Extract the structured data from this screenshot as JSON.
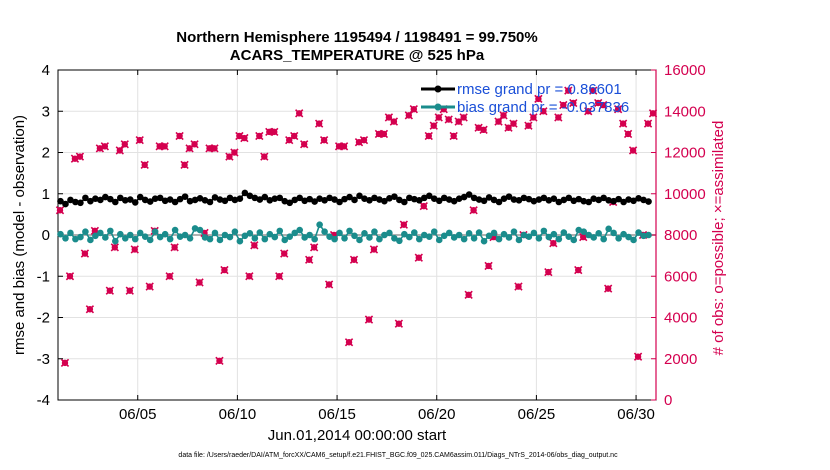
{
  "chart_data": {
    "type": "line",
    "title_line1": "Northern Hemisphere 1195494 / 1198491 = 99.750%",
    "title_line2": "ACARS_TEMPERATURE @ 525 hPa",
    "xlabel": "Jun.01,2014 00:00:00 start",
    "ylabel": "rmse and bias (model - observation)",
    "y2label": "# of obs: o=possible; ×=assimilated",
    "footnote": "data file: /Users/raeder/DAI/ATM_forcXX/CAM6_setup/f.e21.FHIST_BGC.f09_025.CAM6assim.011/Diags_NTrS_2014-06/obs_diag_output.nc",
    "xlim": [
      1,
      31
    ],
    "ylim": [
      -4,
      4
    ],
    "y2lim": [
      0,
      16000
    ],
    "x_ticks": [
      5,
      10,
      15,
      20,
      25,
      30
    ],
    "x_tick_labels": [
      "06/05",
      "06/10",
      "06/15",
      "06/20",
      "06/25",
      "06/30"
    ],
    "y_ticks": [
      -4,
      -3,
      -2,
      -1,
      0,
      1,
      2,
      3,
      4
    ],
    "y_tick_labels": [
      "-4",
      "-3",
      "-2",
      "-1",
      "0",
      "1",
      "2",
      "3",
      "4"
    ],
    "y2_ticks": [
      0,
      2000,
      4000,
      6000,
      8000,
      10000,
      12000,
      14000,
      16000
    ],
    "y2_tick_labels": [
      "0",
      "2000",
      "4000",
      "6000",
      "8000",
      "10000",
      "12000",
      "14000",
      "16000"
    ],
    "grid": true,
    "legend": {
      "position": "top-right",
      "entries": [
        "rmse grand pr = 0.86601",
        "bias grand pr = -0.037836"
      ]
    },
    "colors": {
      "rmse": "#000000",
      "bias": "#1a8c8c",
      "obs": "#d4004f",
      "legend_text": "#1a4fd8",
      "zero_line": "#b0b0b0"
    },
    "series": [
      {
        "name": "rmse",
        "step_days": 0.25,
        "start_day": 1.125,
        "values": [
          0.82,
          0.75,
          0.85,
          0.8,
          0.78,
          0.9,
          0.82,
          0.88,
          0.85,
          0.92,
          0.87,
          0.8,
          0.9,
          0.84,
          0.86,
          0.79,
          0.92,
          0.85,
          0.81,
          0.88,
          0.9,
          0.83,
          0.86,
          0.8,
          0.87,
          0.93,
          0.82,
          0.85,
          0.89,
          0.84,
          0.8,
          0.91,
          0.86,
          0.83,
          0.9,
          0.85,
          0.88,
          1.02,
          0.95,
          0.9,
          0.86,
          0.92,
          0.84,
          0.88,
          0.9,
          0.82,
          0.78,
          0.85,
          0.9,
          0.83,
          0.87,
          0.81,
          0.88,
          0.84,
          0.9,
          0.86,
          0.8,
          0.87,
          0.92,
          0.85,
          0.95,
          0.88,
          0.84,
          0.9,
          0.86,
          0.82,
          0.89,
          0.93,
          0.85,
          0.8,
          0.9,
          0.87,
          0.84,
          0.9,
          0.95,
          0.88,
          0.83,
          0.9,
          0.86,
          0.82,
          0.88,
          0.92,
          0.98,
          0.9,
          0.86,
          0.83,
          0.91,
          0.85,
          0.8,
          0.88,
          0.93,
          0.86,
          0.84,
          0.9,
          0.87,
          0.82,
          0.86,
          0.9,
          0.84,
          0.88,
          0.8,
          0.85,
          0.9,
          0.83,
          0.87,
          0.82,
          0.8,
          0.88,
          0.85,
          0.9,
          0.84,
          0.82,
          0.87,
          0.8,
          0.86,
          0.83,
          0.89,
          0.85,
          0.81
        ]
      },
      {
        "name": "bias",
        "step_days": 0.25,
        "start_day": 1.125,
        "values": [
          0.02,
          -0.08,
          0.05,
          -0.1,
          -0.05,
          0.08,
          -0.12,
          -0.02,
          0.05,
          -0.06,
          0.1,
          -0.15,
          0.02,
          -0.08,
          0.0,
          -0.1,
          0.05,
          -0.04,
          -0.12,
          0.08,
          -0.05,
          0.02,
          -0.1,
          0.12,
          -0.04,
          0.0,
          -0.08,
          0.16,
          0.12,
          -0.06,
          -0.1,
          0.05,
          -0.12,
          0.0,
          -0.05,
          0.08,
          -0.15,
          -0.02,
          0.04,
          -0.08,
          0.06,
          -0.1,
          0.02,
          -0.05,
          0.1,
          -0.12,
          -0.04,
          0.05,
          0.12,
          -0.06,
          0.0,
          -0.1,
          0.25,
          0.08,
          -0.04,
          -0.1,
          0.05,
          -0.08,
          0.1,
          -0.02,
          -0.12,
          0.04,
          -0.06,
          0.08,
          -0.1,
          0.0,
          0.05,
          -0.08,
          -0.14,
          0.02,
          -0.05,
          0.06,
          -0.1,
          0.0,
          -0.04,
          0.08,
          -0.12,
          -0.02,
          0.05,
          -0.06,
          0.0,
          -0.1,
          0.04,
          -0.08,
          0.06,
          -0.15,
          -0.02,
          0.05,
          -0.1,
          0.02,
          -0.06,
          0.08,
          -0.12,
          0.0,
          -0.04,
          0.05,
          -0.08,
          0.1,
          -0.05,
          0.02,
          -0.1,
          0.06,
          -0.04,
          -0.12,
          0.12,
          0.08,
          0.0,
          -0.06,
          0.04,
          -0.1,
          0.15,
          0.05,
          -0.08,
          0.02,
          -0.05,
          -0.12,
          0.06,
          -0.02,
          0.0
        ]
      },
      {
        "name": "obs_possible",
        "x": [
          1.1,
          1.35,
          1.6,
          1.85,
          2.1,
          2.35,
          2.6,
          2.85,
          3.1,
          3.35,
          3.6,
          3.85,
          4.1,
          4.35,
          4.6,
          4.85,
          5.1,
          5.35,
          5.6,
          5.85,
          6.1,
          6.35,
          6.6,
          6.85,
          7.1,
          7.35,
          7.6,
          7.85,
          8.1,
          8.35,
          8.6,
          8.85,
          9.1,
          9.35,
          9.6,
          9.85,
          10.1,
          10.35,
          10.6,
          10.85,
          11.1,
          11.35,
          11.6,
          11.85,
          12.1,
          12.35,
          12.6,
          12.85,
          13.1,
          13.35,
          13.6,
          13.85,
          14.1,
          14.35,
          14.6,
          14.85,
          15.1,
          15.35,
          15.6,
          15.85,
          16.1,
          16.35,
          16.6,
          16.85,
          17.1,
          17.35,
          17.6,
          17.85,
          18.1,
          18.35,
          18.6,
          18.85,
          19.1,
          19.35,
          19.6,
          19.85,
          20.1,
          20.35,
          20.6,
          20.85,
          21.1,
          21.35,
          21.6,
          21.85,
          22.1,
          22.35,
          22.6,
          22.85,
          23.1,
          23.35,
          23.6,
          23.85,
          24.1,
          24.35,
          24.6,
          24.85,
          25.1,
          25.35,
          25.6,
          25.85,
          26.1,
          26.35,
          26.6,
          26.85,
          27.1,
          27.35,
          27.6,
          27.85,
          28.1,
          28.35,
          28.6,
          28.85,
          29.1,
          29.35,
          29.6,
          29.85,
          30.1,
          30.35,
          30.6,
          30.85
        ],
        "values": [
          9200,
          1800,
          6000,
          11700,
          11800,
          7100,
          4400,
          8200,
          12200,
          12300,
          5300,
          7400,
          12100,
          12400,
          5300,
          7300,
          12600,
          11400,
          5500,
          8200,
          12300,
          12300,
          6000,
          7400,
          12800,
          11400,
          12200,
          12400,
          5700,
          8100,
          12200,
          12200,
          1900,
          6300,
          11800,
          12000,
          12800,
          12700,
          6000,
          7500,
          12800,
          11800,
          13000,
          13000,
          6000,
          7100,
          12600,
          12800,
          13900,
          12400,
          6800,
          7400,
          13400,
          12600,
          5600,
          8000,
          12300,
          12300,
          2800,
          6800,
          12500,
          12600,
          3900,
          7300,
          12900,
          12900,
          13700,
          13500,
          3700,
          8500,
          13800,
          14100,
          6900,
          9400,
          12800,
          13300,
          13700,
          14100,
          13600,
          12800,
          13500,
          13700,
          5100,
          9200,
          13200,
          13100,
          6500,
          7900,
          13500,
          13800,
          13200,
          13400,
          5500,
          8000,
          13300,
          13700,
          14600,
          14000,
          6200,
          7600,
          13700,
          14300,
          15000,
          14400,
          6300,
          7900,
          14000,
          15000,
          14400,
          14300,
          5400,
          9600,
          14100,
          13400,
          12900,
          12100,
          2100,
          8000,
          13400,
          13900
        ]
      }
    ]
  }
}
